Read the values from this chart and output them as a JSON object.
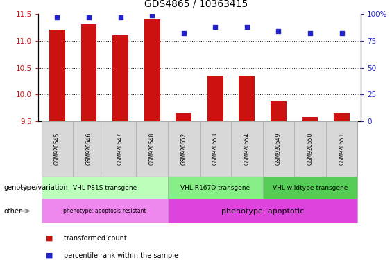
{
  "title": "GDS4865 / 10363415",
  "samples": [
    "GSM920545",
    "GSM920546",
    "GSM920547",
    "GSM920548",
    "GSM920552",
    "GSM920553",
    "GSM920554",
    "GSM920549",
    "GSM920550",
    "GSM920551"
  ],
  "bar_values": [
    11.2,
    11.3,
    11.1,
    11.4,
    9.65,
    10.35,
    10.35,
    9.88,
    9.58,
    9.65
  ],
  "percentile_values": [
    97,
    97,
    97,
    99,
    82,
    88,
    88,
    84,
    82,
    82
  ],
  "ylim_left": [
    9.5,
    11.5
  ],
  "ylim_right": [
    0,
    100
  ],
  "yticks_left": [
    9.5,
    10.0,
    10.5,
    11.0,
    11.5
  ],
  "yticks_right": [
    0,
    25,
    50,
    75,
    100
  ],
  "bar_color": "#cc1111",
  "dot_color": "#2222cc",
  "background_color": "#ffffff",
  "groups": [
    {
      "label": "VHL P81S transgene",
      "start": 0,
      "end": 4,
      "color": "#bbffbb"
    },
    {
      "label": "VHL R167Q transgene",
      "start": 4,
      "end": 7,
      "color": "#88ee88"
    },
    {
      "label": "VHL wildtype transgene",
      "start": 7,
      "end": 10,
      "color": "#55cc55"
    }
  ],
  "other_groups": [
    {
      "label": "phenotype: apoptosis-resistant",
      "start": 0,
      "end": 4,
      "color": "#ee88ee"
    },
    {
      "label": "phenotype: apoptotic",
      "start": 4,
      "end": 10,
      "color": "#dd44dd"
    }
  ],
  "genotype_label": "genotype/variation",
  "other_label": "other",
  "legend_bar": "transformed count",
  "legend_dot": "percentile rank within the sample",
  "axis_label_color_left": "#cc1111",
  "axis_label_color_right": "#2222cc",
  "grid_lines": [
    10.0,
    10.5,
    11.0
  ],
  "dot_line": 11.0
}
